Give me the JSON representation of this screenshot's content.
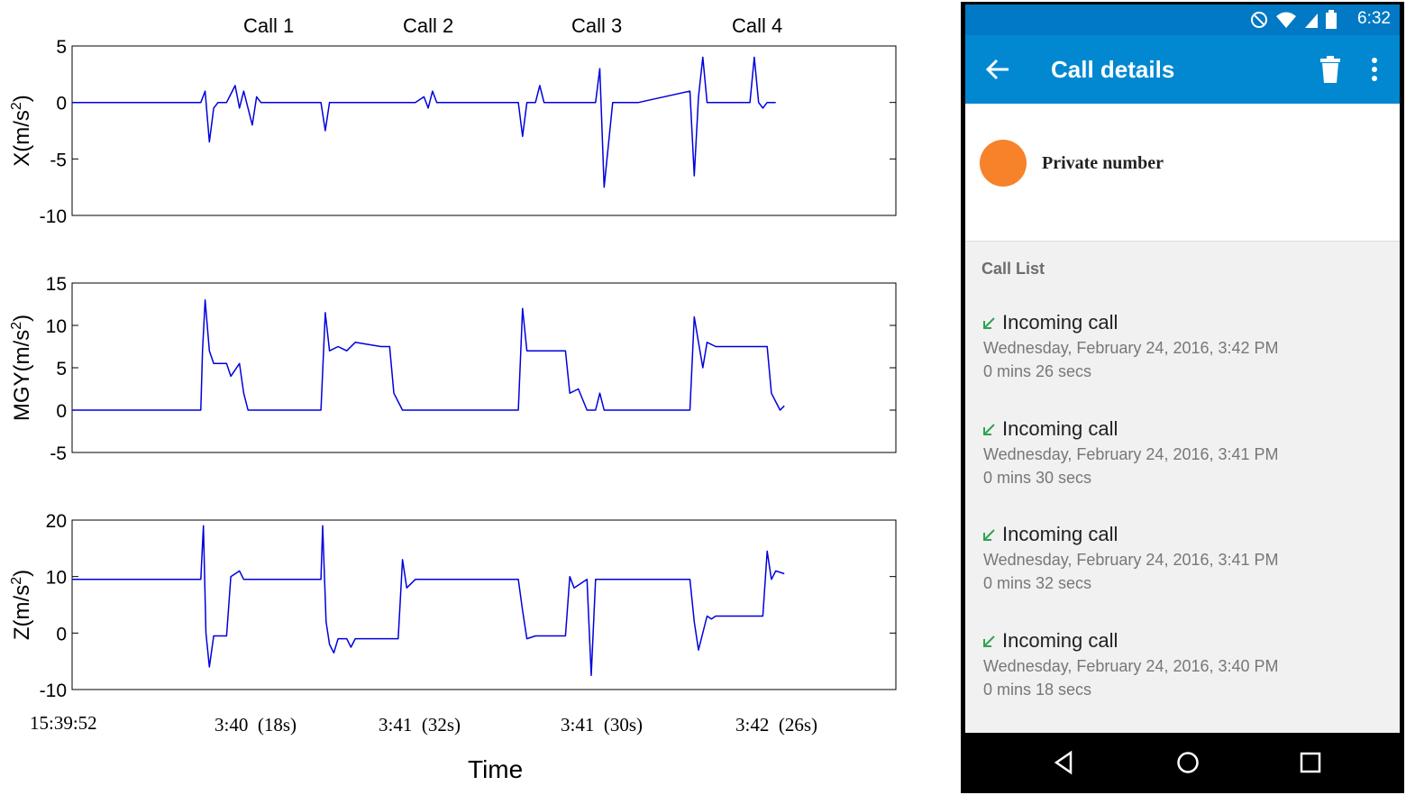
{
  "chart_data": [
    {
      "type": "line",
      "ylabel": "X(m/s2)",
      "ylim": [
        -10,
        5
      ],
      "yticks": [
        5,
        0,
        -5,
        -10
      ],
      "grid": false,
      "series_color": "#0000dd",
      "x_unit": "seconds since 15:39:52",
      "x": [
        0,
        15,
        15.5,
        16,
        16.5,
        17,
        18,
        19,
        19.5,
        20,
        21,
        21.5,
        22,
        29,
        29.5,
        30,
        30.5,
        31,
        33,
        40,
        41,
        41.5,
        42,
        42.5,
        43,
        52,
        52.5,
        53,
        54,
        54.5,
        55,
        61,
        61.5,
        62,
        63,
        64,
        66,
        72,
        72.5,
        73,
        73.5,
        74,
        75,
        79,
        79.5,
        80,
        80.5,
        81,
        82
      ],
      "y": [
        0,
        0,
        1,
        -3.5,
        -0.5,
        0,
        0,
        1.5,
        -0.5,
        1,
        -2,
        0.5,
        0,
        0,
        -2.5,
        0,
        0,
        0,
        0,
        0,
        0.5,
        -0.5,
        1,
        0,
        0,
        0,
        -3,
        0,
        0,
        1.5,
        0,
        0,
        3,
        -7.5,
        0,
        0,
        0,
        1,
        -6.5,
        0.5,
        4,
        0,
        0,
        0,
        4,
        0,
        -0.5,
        0,
        0
      ]
    },
    {
      "type": "line",
      "ylabel": "MGY(m/s2)",
      "ylim": [
        -5,
        15
      ],
      "yticks": [
        15,
        10,
        5,
        0,
        -5
      ],
      "grid": false,
      "series_color": "#0000dd",
      "x_unit": "seconds since 15:39:52",
      "x": [
        0,
        15,
        15.2,
        15.5,
        16,
        16.5,
        18,
        18.5,
        19.5,
        20,
        20.5,
        21,
        29,
        29.5,
        30,
        31,
        32,
        33,
        36,
        37,
        37.5,
        38,
        38.5,
        40,
        52,
        52.5,
        53,
        54,
        56,
        57.5,
        58,
        59,
        60,
        61,
        61.5,
        62,
        72,
        72.5,
        73,
        73.5,
        74,
        75,
        81,
        81.5,
        82,
        82.5,
        83
      ],
      "y": [
        0,
        0,
        7,
        13,
        7,
        5.5,
        5.5,
        4,
        5.5,
        2,
        0,
        0,
        0,
        11.5,
        7,
        7.5,
        7,
        8,
        7.5,
        7.5,
        2,
        1,
        0,
        0,
        0,
        12,
        7,
        7,
        7,
        7,
        2,
        2.5,
        0,
        0,
        2,
        0,
        0,
        11,
        8,
        5,
        8,
        7.5,
        7.5,
        2,
        1,
        0,
        0.5
      ]
    },
    {
      "type": "line",
      "ylabel": "Z(m/s2)",
      "ylim": [
        -10,
        20
      ],
      "yticks": [
        20,
        10,
        0,
        -10
      ],
      "grid": false,
      "series_color": "#0000dd",
      "x_unit": "seconds since 15:39:52",
      "x": [
        0,
        15,
        15.3,
        15.6,
        16,
        16.5,
        18,
        18.5,
        19.5,
        20,
        21,
        29,
        29.2,
        29.6,
        30,
        30.5,
        31,
        32,
        32.5,
        33,
        36,
        38,
        38.5,
        39,
        40,
        52,
        52.5,
        53,
        54,
        57.5,
        58,
        58.5,
        60,
        60.5,
        61,
        62,
        72,
        72.5,
        73,
        74,
        74.5,
        75,
        80.5,
        81,
        81.5,
        82,
        83
      ],
      "y": [
        9.5,
        9.5,
        19,
        0,
        -6,
        -0.5,
        -0.5,
        10,
        11,
        9.5,
        9.5,
        9.5,
        19,
        2,
        -2,
        -3.5,
        -1,
        -1,
        -2.5,
        -1,
        -1,
        -1,
        13,
        8,
        9.5,
        9.5,
        4,
        -1,
        -0.5,
        -0.5,
        10,
        8,
        9.5,
        -7.5,
        9.5,
        9.5,
        9.5,
        2,
        -3,
        3,
        2.5,
        3,
        3,
        14.5,
        9.5,
        11,
        10.5
      ]
    }
  ],
  "chart_labels": {
    "calls": [
      "Call 1",
      "Call 2",
      "Call 3",
      "Call 4"
    ],
    "time_labels": [
      "15:39:52",
      "3:40  (18s)",
      "3:41  (32s)",
      "3:41  (30s)",
      "3:42  (26s)"
    ],
    "xlabel": "Time"
  },
  "phone": {
    "status": {
      "time": "6:32"
    },
    "app_bar": {
      "title": "Call details"
    },
    "contact": {
      "name": "Private number",
      "avatar_color": "#f7822a"
    },
    "call_list_header": "Call List",
    "calls": [
      {
        "type": "Incoming call",
        "date": "Wednesday, February 24, 2016, 3:42 PM",
        "duration": "0 mins 26 secs"
      },
      {
        "type": "Incoming call",
        "date": "Wednesday, February 24, 2016, 3:41 PM",
        "duration": "0 mins 30 secs"
      },
      {
        "type": "Incoming call",
        "date": "Wednesday, February 24, 2016, 3:41 PM",
        "duration": "0 mins 32 secs"
      },
      {
        "type": "Incoming call",
        "date": "Wednesday, February 24, 2016, 3:40 PM",
        "duration": "0 mins 18 secs"
      }
    ],
    "icons": [
      "back-arrow-icon",
      "trash-icon",
      "more-vert-icon",
      "incoming-call-icon",
      "nav-back-icon",
      "nav-home-icon",
      "nav-recents-icon"
    ],
    "accent_color": "#0288d1",
    "incoming_icon_color": "#2ea44f"
  }
}
